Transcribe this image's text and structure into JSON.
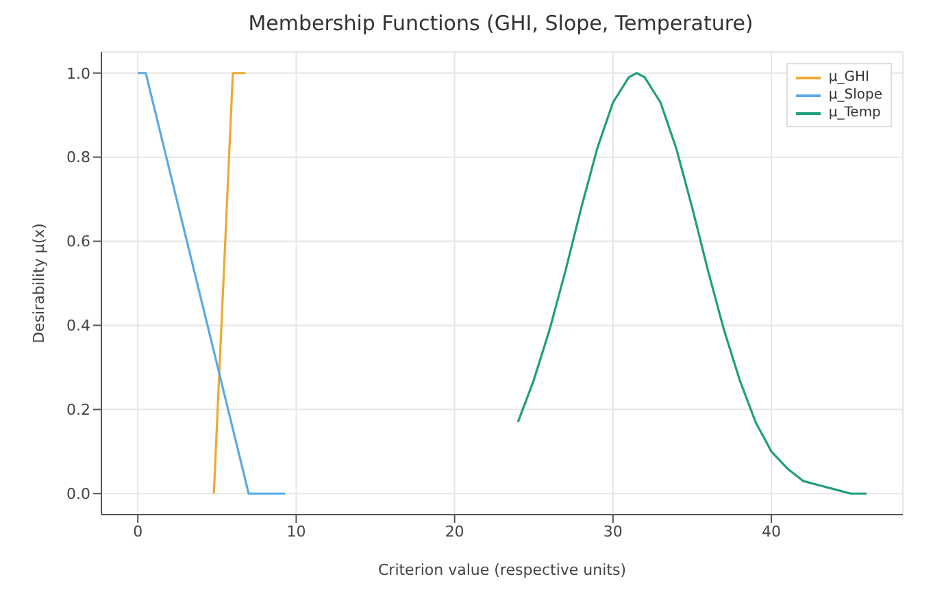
{
  "chart_data": {
    "type": "line",
    "title": "Membership Functions (GHI, Slope, Temperature)",
    "xlabel": "Criterion value (respective units)",
    "ylabel": "Desirability μ(x)",
    "series": [
      {
        "name": "μ_GHI",
        "color": "#f0a830",
        "x": [
          4.8,
          6.0,
          6.8
        ],
        "values": [
          0,
          1,
          1
        ]
      },
      {
        "name": "μ_Slope",
        "color": "#5aa9e6",
        "x": [
          0,
          0.5,
          7.0,
          9.3
        ],
        "values": [
          1,
          1,
          0,
          0
        ]
      },
      {
        "name": "μ_Temp",
        "color": "#1f9e7f",
        "x": [
          24,
          25,
          26,
          27,
          28,
          29,
          30,
          31,
          31.5,
          32,
          33,
          34,
          35,
          36,
          37,
          38,
          39,
          40,
          41,
          42,
          43,
          44,
          45,
          46
        ],
        "values": [
          0.17,
          0.27,
          0.39,
          0.53,
          0.68,
          0.82,
          0.93,
          0.99,
          1.0,
          0.99,
          0.93,
          0.82,
          0.68,
          0.53,
          0.39,
          0.27,
          0.17,
          0.1,
          0.06,
          0.03,
          0.02,
          0.01,
          0.0,
          0.0
        ]
      }
    ],
    "xlim": [
      -2.3,
      48.3
    ],
    "xticks": [
      0,
      10,
      20,
      30,
      40
    ],
    "ylim": [
      -0.05,
      1.05
    ],
    "yticks": [
      {
        "value": 0,
        "label": "0.0"
      },
      {
        "value": 0.2,
        "label": "0.2"
      },
      {
        "value": 0.4,
        "label": "0.4"
      },
      {
        "value": 0.6,
        "label": "0.6"
      },
      {
        "value": 0.8,
        "label": "0.8"
      },
      {
        "value": 1,
        "label": "1.0"
      }
    ],
    "grid": true,
    "legend": "top right",
    "line_style": "solid"
  }
}
